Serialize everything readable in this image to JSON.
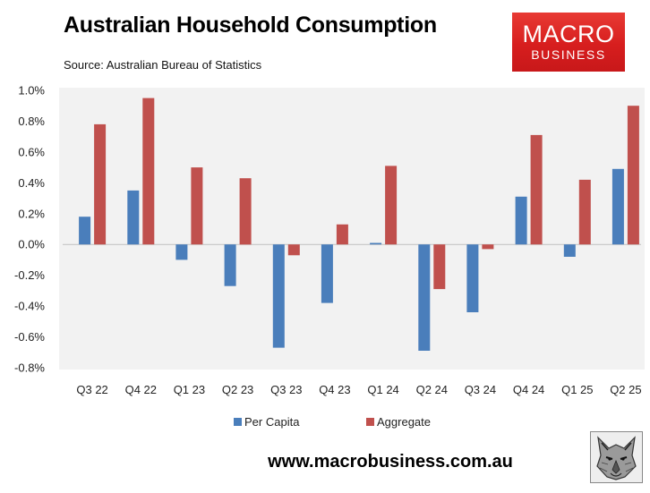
{
  "header": {
    "title": "Australian Household Consumption",
    "subtitle": "Source: Australian Bureau of Statistics"
  },
  "logo": {
    "line1": "MACRO",
    "line2": "BUSINESS"
  },
  "footer": {
    "website": "www.macrobusiness.com.au",
    "emblem_icon": "wolf-emblem-icon"
  },
  "colors": {
    "per_capita": "#4a7ebb",
    "aggregate": "#c0504d",
    "logo_red": "#d71e1e"
  },
  "chart_data": {
    "type": "bar",
    "categories": [
      "Q3 22",
      "Q4 22",
      "Q1 23",
      "Q2 23",
      "Q3 23",
      "Q4 23",
      "Q1 24",
      "Q2 24",
      "Q3 24",
      "Q4 24",
      "Q1 25",
      "Q2 25"
    ],
    "series": [
      {
        "name": "Per Capita",
        "values": [
          0.18,
          0.35,
          -0.1,
          -0.27,
          -0.67,
          -0.38,
          0.01,
          -0.69,
          -0.44,
          0.31,
          -0.08,
          0.49
        ]
      },
      {
        "name": "Aggregate",
        "values": [
          0.78,
          0.95,
          0.5,
          0.43,
          -0.07,
          0.13,
          0.51,
          -0.29,
          -0.03,
          0.71,
          0.42,
          0.9
        ]
      }
    ],
    "ylim": [
      -0.8,
      1.0
    ],
    "yticks": [
      -0.8,
      -0.6,
      -0.4,
      -0.2,
      0.0,
      0.2,
      0.4,
      0.6,
      0.8,
      1.0
    ],
    "ytick_labels": [
      "-0.8%",
      "-0.6%",
      "-0.4%",
      "-0.2%",
      "0.0%",
      "0.2%",
      "0.4%",
      "0.6%",
      "0.8%",
      "1.0%"
    ],
    "legend_position": "bottom-center",
    "grid": false
  }
}
